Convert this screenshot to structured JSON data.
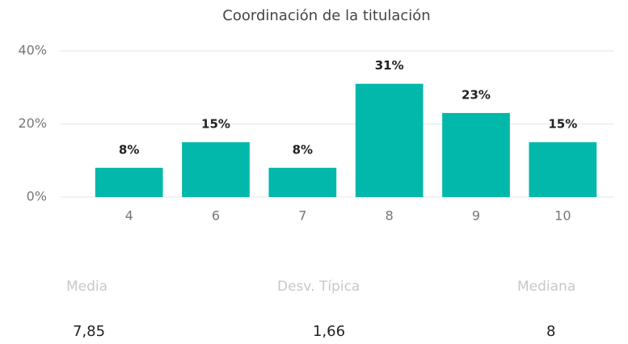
{
  "chart_data": {
    "type": "bar",
    "title": "Coordinación de la titulación",
    "categories": [
      "4",
      "6",
      "7",
      "8",
      "9",
      "10"
    ],
    "values": [
      8,
      15,
      8,
      31,
      23,
      15
    ],
    "value_labels": [
      "8%",
      "15%",
      "8%",
      "31%",
      "23%",
      "15%"
    ],
    "color": "#01b8aa",
    "ylim": [
      0,
      40
    ],
    "yticks": [
      {
        "value": 0,
        "label": "0%"
      },
      {
        "value": 20,
        "label": "20%"
      },
      {
        "value": 40,
        "label": "40%"
      }
    ],
    "grid": true
  },
  "stats": [
    {
      "label": "Media",
      "value": "7,85"
    },
    {
      "label": "Desv. Típica",
      "value": "1,66"
    },
    {
      "label": "Mediana",
      "value": "8"
    }
  ]
}
